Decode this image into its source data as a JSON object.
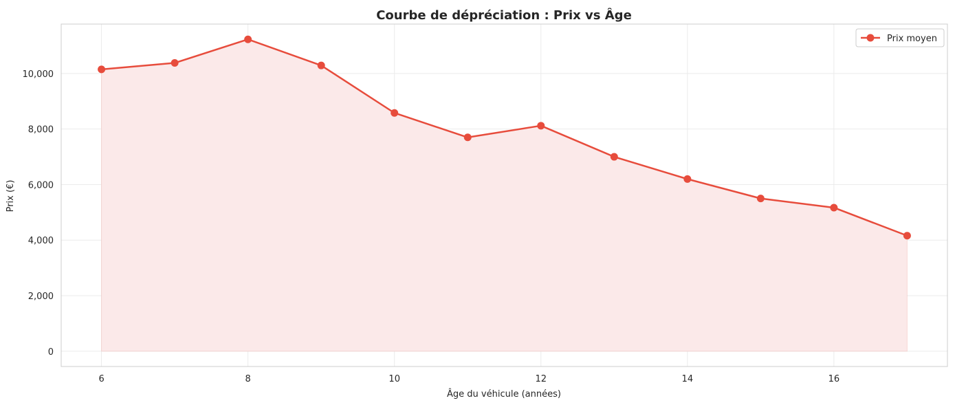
{
  "chart_data": {
    "type": "line",
    "title": "Courbe de dépréciation : Prix vs Âge",
    "xlabel": "Âge du véhicule (années)",
    "ylabel": "Prix (€)",
    "x": [
      6,
      7,
      8,
      9,
      10,
      11,
      12,
      13,
      14,
      15,
      16,
      17
    ],
    "series": [
      {
        "name": "Prix moyen",
        "values": [
          10150,
          10380,
          11230,
          10290,
          8580,
          7700,
          8120,
          7000,
          6200,
          5500,
          5170,
          4160
        ],
        "color": "#e74c3c",
        "fill_color": "#fbe9e9",
        "marker": "circle",
        "filled_area": true
      }
    ],
    "xlim": [
      5.45,
      17.55
    ],
    "ylim": [
      -550,
      11780
    ],
    "xticks": [
      6,
      8,
      10,
      12,
      14,
      16
    ],
    "xtick_labels": [
      "6",
      "8",
      "10",
      "12",
      "14",
      "16"
    ],
    "yticks": [
      0,
      2000,
      4000,
      6000,
      8000,
      10000
    ],
    "ytick_labels": [
      "0",
      "2,000",
      "4,000",
      "6,000",
      "8,000",
      "10,000"
    ],
    "grid": true,
    "legend_position": "top-right"
  }
}
